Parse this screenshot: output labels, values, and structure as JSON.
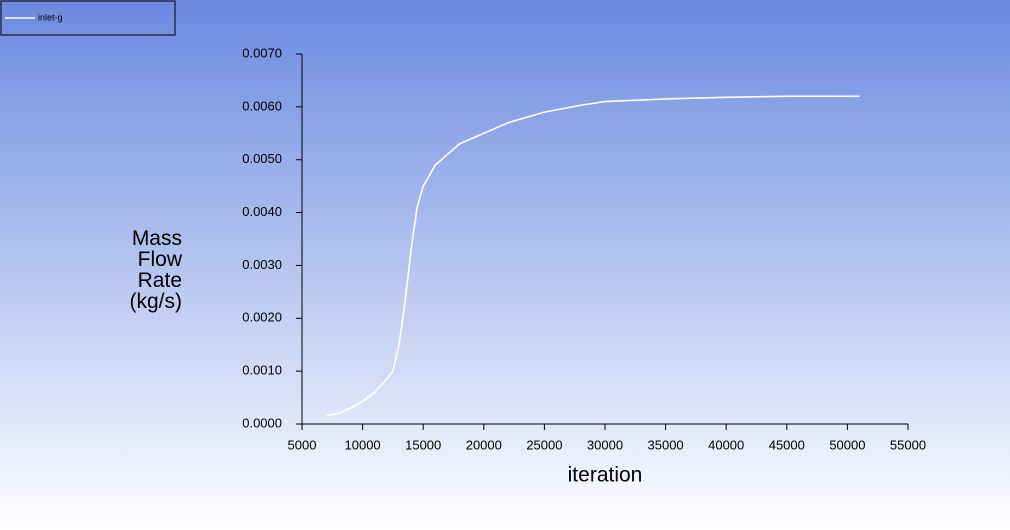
{
  "chart_data": {
    "type": "line",
    "x_label": "iteration",
    "y_label": "Mass Flow Rate (kg/s)",
    "x": [
      7000,
      8000,
      9000,
      10000,
      11000,
      12000,
      12500,
      13000,
      13500,
      14000,
      14500,
      15000,
      16000,
      17000,
      18000,
      20000,
      22000,
      25000,
      28000,
      30000,
      35000,
      40000,
      45000,
      51000
    ],
    "series": [
      {
        "name": "inlet-g",
        "color": "#ffffff",
        "values": [
          0.00015,
          0.0002,
          0.0003,
          0.00043,
          0.0006,
          0.00085,
          0.001,
          0.0015,
          0.0023,
          0.0033,
          0.0041,
          0.0045,
          0.0049,
          0.0051,
          0.0053,
          0.0055,
          0.0057,
          0.0059,
          0.00603,
          0.0061,
          0.00615,
          0.00618,
          0.0062,
          0.0062
        ]
      }
    ],
    "xlim": [
      5000,
      55000
    ],
    "xticks": [
      5000,
      10000,
      15000,
      20000,
      25000,
      30000,
      35000,
      40000,
      45000,
      50000,
      55000
    ],
    "ylim": [
      0,
      0.007
    ],
    "yticks": [
      {
        "value": 0,
        "label": "0.0000"
      },
      {
        "value": 0.001,
        "label": "0.0010"
      },
      {
        "value": 0.002,
        "label": "0.0020"
      },
      {
        "value": 0.003,
        "label": "0.0030"
      },
      {
        "value": 0.004,
        "label": "0.0040"
      },
      {
        "value": 0.005,
        "label": "0.0050"
      },
      {
        "value": 0.006,
        "label": "0.0060"
      },
      {
        "value": 0.007,
        "label": "0.0070"
      }
    ],
    "legend": "top-left"
  }
}
